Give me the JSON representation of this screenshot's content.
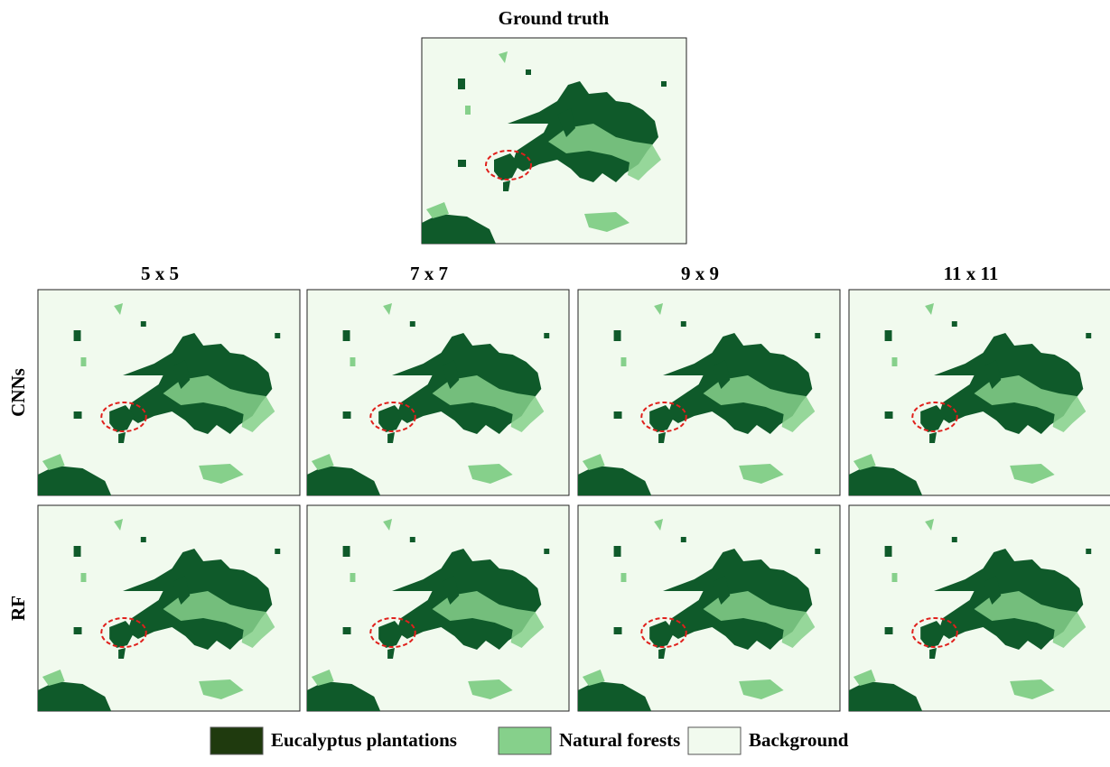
{
  "figure": {
    "title": "Ground truth",
    "columns": [
      "5 x 5",
      "7 x 7",
      "9 x 9",
      "11 x 11"
    ],
    "rows": [
      "CNNs",
      "RF"
    ],
    "legend": [
      {
        "label": "Eucalyptus plantations",
        "color": "#1f3a0e"
      },
      {
        "label": "Natural forests",
        "color": "#86d08b"
      },
      {
        "label": "Background",
        "color": "#f1faee"
      }
    ]
  }
}
